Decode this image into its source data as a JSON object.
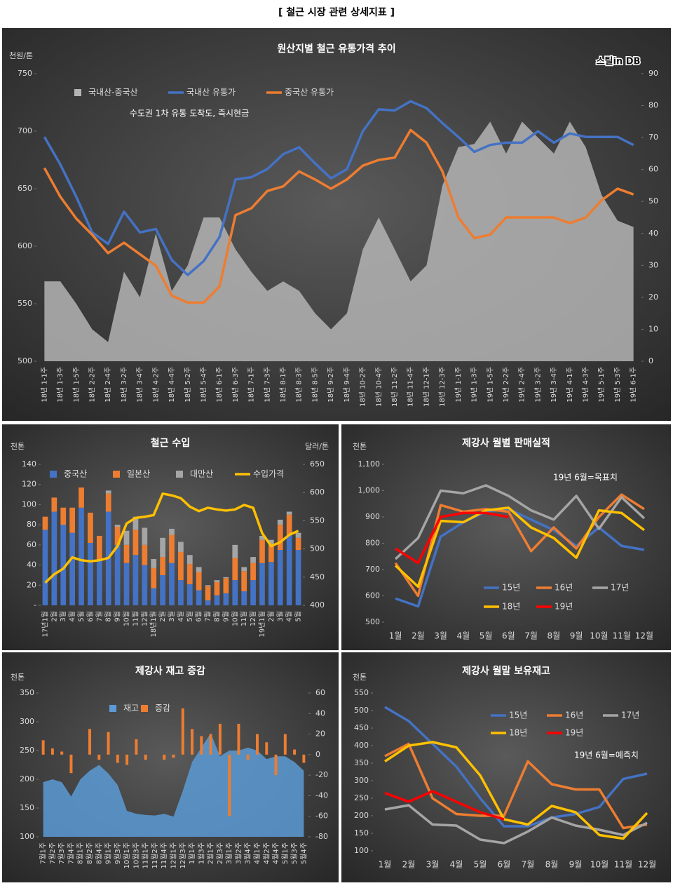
{
  "title": "[ 철근 시장 관련 상세지표 ]",
  "chart_data": [
    {
      "type": "combo",
      "title": "원산지별 철근 유통가격 추이",
      "ylabel": "천원/톤",
      "annotation": "수도권 1차 유통 도착도, 즉시현금",
      "logo": "스틸in DB",
      "categories": [
        "18년 1-1주",
        "18년 1-3주",
        "18년 1-5주",
        "18년 2-2주",
        "18년 2-4주",
        "18년 3-2주",
        "18년 3-4주",
        "18년 4-2주",
        "18년 4-4주",
        "18년 5-2주",
        "18년 5-4주",
        "18년 6-1주",
        "18년 6-3주",
        "18년 7-1주",
        "18년 7-3주",
        "18년 8-1주",
        "18년 8-3주",
        "18년 8-5주",
        "18년 9-2주",
        "18년 9-4주",
        "18년 10-2주",
        "18년 10-4주",
        "18년 11-2주",
        "18년 11-4주",
        "18년 12-1주",
        "18년 12-3주",
        "19년 1-1주",
        "19년 1-3주",
        "19년 1-5주",
        "19년 2-2주",
        "19년 2-4주",
        "19년 3-2주",
        "19년 3-4주",
        "19년 4-1주",
        "19년 4-3주",
        "19년 5-1주",
        "19년 5-3주",
        "19년 6-1주"
      ],
      "series": [
        {
          "name": "국내산-중국산",
          "type": "area",
          "axis": "y2",
          "color": "#b4b4b4",
          "values": [
            25,
            25,
            18,
            10,
            6,
            28,
            20,
            40,
            22,
            30,
            45,
            45,
            35,
            28,
            22,
            25,
            22,
            15,
            10,
            15,
            35,
            45,
            35,
            25,
            30,
            55,
            67,
            68,
            75,
            65,
            75,
            70,
            65,
            75,
            67,
            52,
            44,
            42
          ]
        },
        {
          "name": "국내산 유통가",
          "type": "line",
          "color": "#4472c4",
          "values": [
            695,
            671,
            643,
            612,
            602,
            630,
            612,
            615,
            588,
            575,
            587,
            608,
            658,
            660,
            667,
            680,
            686,
            672,
            659,
            667,
            700,
            719,
            718,
            726,
            720,
            707,
            695,
            682,
            688,
            690,
            690,
            700,
            690,
            698,
            695,
            695,
            695,
            688
          ]
        },
        {
          "name": "중국산 유통가",
          "type": "line",
          "color": "#ed7d31",
          "values": [
            668,
            643,
            624,
            610,
            594,
            603,
            593,
            583,
            557,
            551,
            551,
            565,
            627,
            633,
            648,
            652,
            665,
            658,
            650,
            658,
            670,
            675,
            677,
            701,
            690,
            665,
            625,
            607,
            610,
            625,
            625,
            625,
            625,
            620,
            625,
            640,
            650,
            645
          ]
        }
      ],
      "ylim": [
        500,
        750
      ],
      "yticks": [
        500,
        550,
        600,
        650,
        700,
        750
      ],
      "y2lim": [
        0,
        90
      ],
      "y2ticks": [
        0,
        10,
        20,
        30,
        40,
        50,
        60,
        70,
        80,
        90
      ],
      "grid": false
    },
    {
      "type": "combo",
      "title": "철근 수입",
      "ylabel": "천톤",
      "y2label": "달러/톤",
      "categories": [
        "17년1월",
        "2월",
        "3월",
        "4월",
        "5월",
        "6월",
        "7월",
        "8월",
        "9월",
        "10월",
        "11월",
        "12월",
        "18년1월",
        "2월",
        "3월",
        "4월",
        "5월",
        "6월",
        "7월",
        "8월",
        "9월",
        "10월",
        "11월",
        "12월",
        "19년1월",
        "2월",
        "3월",
        "4월",
        "5월"
      ],
      "series": [
        {
          "name": "중국산",
          "type": "bar",
          "color": "#4472c4",
          "values": [
            75,
            93,
            80,
            72,
            97,
            62,
            45,
            93,
            60,
            42,
            50,
            40,
            17,
            30,
            42,
            25,
            21,
            15,
            5,
            10,
            12,
            25,
            14,
            25,
            42,
            43,
            55,
            70,
            55
          ]
        },
        {
          "name": "일본산",
          "type": "bar",
          "color": "#ed7d31",
          "values": [
            13,
            14,
            17,
            25,
            20,
            30,
            24,
            18,
            18,
            18,
            25,
            20,
            20,
            18,
            28,
            28,
            20,
            18,
            14,
            13,
            15,
            22,
            20,
            17,
            23,
            17,
            25,
            20,
            12
          ]
        },
        {
          "name": "대만산",
          "type": "bar",
          "color": "#a5a5a5",
          "values": [
            0,
            0,
            0,
            0,
            0,
            0,
            0,
            3,
            2,
            14,
            13,
            17,
            9,
            19,
            6,
            10,
            9,
            5,
            1,
            2,
            1,
            13,
            4,
            6,
            4,
            5,
            5,
            3,
            5
          ]
        },
        {
          "name": "수입가격",
          "type": "line",
          "axis": "y2",
          "color": "#ffc000",
          "values": [
            440,
            455,
            465,
            485,
            480,
            478,
            480,
            484,
            505,
            545,
            555,
            557,
            560,
            598,
            595,
            590,
            575,
            567,
            573,
            570,
            568,
            570,
            578,
            573,
            528,
            505,
            512,
            525,
            532
          ]
        }
      ],
      "ylim": [
        0,
        140
      ],
      "yticks": [
        {
          "value": 0,
          "label": "-"
        },
        20,
        40,
        60,
        80,
        100,
        120,
        140
      ],
      "y2lim": [
        400,
        650
      ],
      "y2ticks": [
        400,
        450,
        500,
        550,
        600,
        650
      ],
      "grid": false
    },
    {
      "type": "line",
      "title": "제강사 월별 판매실적",
      "ylabel": "천톤",
      "annotation": "19년 6월=목표치",
      "categories": [
        "1월",
        "2월",
        "3월",
        "4월",
        "5월",
        "6월",
        "7월",
        "8월",
        "9월",
        "10월",
        "11월",
        "12월"
      ],
      "series": [
        {
          "name": "15년",
          "color": "#4472c4",
          "values": [
            590,
            560,
            825,
            880,
            920,
            930,
            890,
            850,
            790,
            860,
            790,
            775
          ]
        },
        {
          "name": "16년",
          "color": "#ed7d31",
          "values": [
            725,
            600,
            945,
            920,
            930,
            920,
            770,
            860,
            780,
            900,
            985,
            930
          ]
        },
        {
          "name": "17년",
          "color": "#a5a5a5",
          "values": [
            740,
            820,
            1000,
            990,
            1020,
            980,
            925,
            890,
            980,
            855,
            975,
            895
          ]
        },
        {
          "name": "18년",
          "color": "#ffc000",
          "values": [
            715,
            635,
            885,
            880,
            925,
            935,
            860,
            820,
            745,
            925,
            915,
            850
          ]
        },
        {
          "name": "19년",
          "color": "#ff0000",
          "values": [
            780,
            725,
            900,
            915,
            915,
            900,
            null,
            null,
            null,
            null,
            null,
            null
          ]
        }
      ],
      "ylim": [
        500,
        1100
      ],
      "yticks": [
        500,
        600,
        700,
        800,
        900,
        {
          "value": 1000,
          "label": "1,000"
        },
        {
          "value": 1100,
          "label": "1,100"
        }
      ],
      "grid": false
    },
    {
      "type": "combo",
      "title": "제강사 재고 증감",
      "ylabel": "천톤",
      "categories": [
        "7월1주",
        "7월2주",
        "7월3주",
        "7월4주",
        "8월1주",
        "8월2주",
        "8월4주",
        "9월1주",
        "9월3주",
        "10월1주",
        "10월3주",
        "11월1주",
        "11월2주",
        "11월4주",
        "12월1주",
        "12월3주",
        "1월1주",
        "1월3주",
        "2월1주",
        "2월3주",
        "3월1주",
        "3월2주",
        "3월4주",
        "4월1주",
        "4월2주",
        "4월4주",
        "5월1주",
        "5월3주",
        "5월4주"
      ],
      "series": [
        {
          "name": "재고",
          "type": "area",
          "color": "#5b9bd5",
          "values": [
            195,
            200,
            195,
            170,
            200,
            215,
            225,
            210,
            190,
            145,
            140,
            138,
            137,
            140,
            135,
            180,
            230,
            255,
            280,
            240,
            250,
            250,
            255,
            250,
            235,
            240,
            240,
            230,
            215
          ]
        },
        {
          "name": "증감",
          "type": "bar",
          "axis": "y2",
          "color": "#ed7d31",
          "values": [
            14,
            6,
            3,
            -18,
            0,
            25,
            -5,
            22,
            -8,
            -10,
            15,
            -5,
            0,
            -5,
            -3,
            45,
            25,
            18,
            20,
            30,
            -60,
            30,
            -5,
            20,
            12,
            -20,
            20,
            5,
            -8
          ]
        }
      ],
      "ylim": [
        100,
        350
      ],
      "yticks": [
        100,
        150,
        200,
        250,
        300,
        350
      ],
      "y2lim": [
        -80,
        60
      ],
      "y2ticks": [
        -80,
        -60,
        -40,
        -20,
        0,
        20,
        40,
        60
      ],
      "grid": false
    },
    {
      "type": "line",
      "title": "제강사 월말 보유재고",
      "ylabel": "천톤",
      "annotation": "19년 6월=예측치",
      "categories": [
        "1월",
        "2월",
        "3월",
        "4월",
        "5월",
        "6월",
        "7월",
        "8월",
        "9월",
        "10월",
        "11월",
        "12월"
      ],
      "series": [
        {
          "name": "15년",
          "color": "#4472c4",
          "values": [
            510,
            470,
            405,
            340,
            250,
            170,
            170,
            195,
            205,
            225,
            305,
            320
          ]
        },
        {
          "name": "16년",
          "color": "#ed7d31",
          "values": [
            370,
            405,
            250,
            205,
            200,
            200,
            355,
            290,
            275,
            275,
            165,
            175
          ]
        },
        {
          "name": "17년",
          "color": "#a5a5a5",
          "values": [
            218,
            230,
            175,
            172,
            132,
            122,
            155,
            195,
            172,
            160,
            145,
            180
          ]
        },
        {
          "name": "18년",
          "color": "#ffc000",
          "values": [
            355,
            400,
            410,
            395,
            315,
            190,
            175,
            228,
            210,
            145,
            135,
            208
          ]
        },
        {
          "name": "19년",
          "color": "#ff0000",
          "values": [
            265,
            240,
            270,
            240,
            210,
            190,
            null,
            null,
            null,
            null,
            null,
            null
          ]
        }
      ],
      "ylim": [
        100,
        550
      ],
      "yticks": [
        100,
        150,
        200,
        250,
        300,
        350,
        400,
        450,
        500,
        550
      ],
      "grid": false
    }
  ]
}
